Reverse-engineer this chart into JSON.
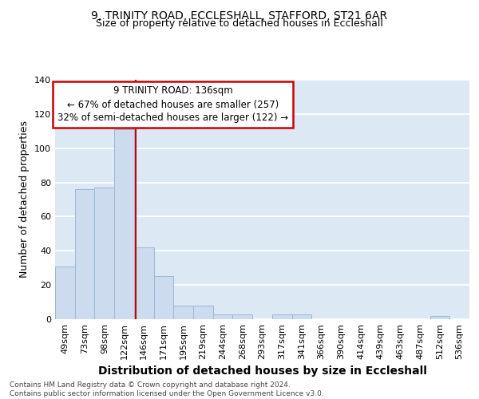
{
  "title1": "9, TRINITY ROAD, ECCLESHALL, STAFFORD, ST21 6AR",
  "title2": "Size of property relative to detached houses in Eccleshall",
  "xlabel": "Distribution of detached houses by size in Eccleshall",
  "ylabel": "Number of detached properties",
  "categories": [
    "49sqm",
    "73sqm",
    "98sqm",
    "122sqm",
    "146sqm",
    "171sqm",
    "195sqm",
    "219sqm",
    "244sqm",
    "268sqm",
    "293sqm",
    "317sqm",
    "341sqm",
    "366sqm",
    "390sqm",
    "414sqm",
    "439sqm",
    "463sqm",
    "487sqm",
    "512sqm",
    "536sqm"
  ],
  "values": [
    31,
    76,
    77,
    111,
    42,
    25,
    8,
    8,
    3,
    3,
    0,
    3,
    3,
    0,
    0,
    0,
    0,
    0,
    0,
    2,
    0
  ],
  "bar_color": "#ccdcee",
  "bar_edge_color": "#9ab8d8",
  "vline_color": "#cc0000",
  "ylim": [
    0,
    140
  ],
  "yticks": [
    0,
    20,
    40,
    60,
    80,
    100,
    120,
    140
  ],
  "annotation_text": "9 TRINITY ROAD: 136sqm\n← 67% of detached houses are smaller (257)\n32% of semi-detached houses are larger (122) →",
  "annotation_box_color": "#ffffff",
  "annotation_box_edge": "#cc0000",
  "footer_text": "Contains HM Land Registry data © Crown copyright and database right 2024.\nContains public sector information licensed under the Open Government Licence v3.0.",
  "background_color": "#dce9f5",
  "grid_color": "#ffffff",
  "title_fontsize": 10,
  "subtitle_fontsize": 9,
  "tick_fontsize": 8,
  "label_fontsize": 9,
  "footer_fontsize": 6.5
}
